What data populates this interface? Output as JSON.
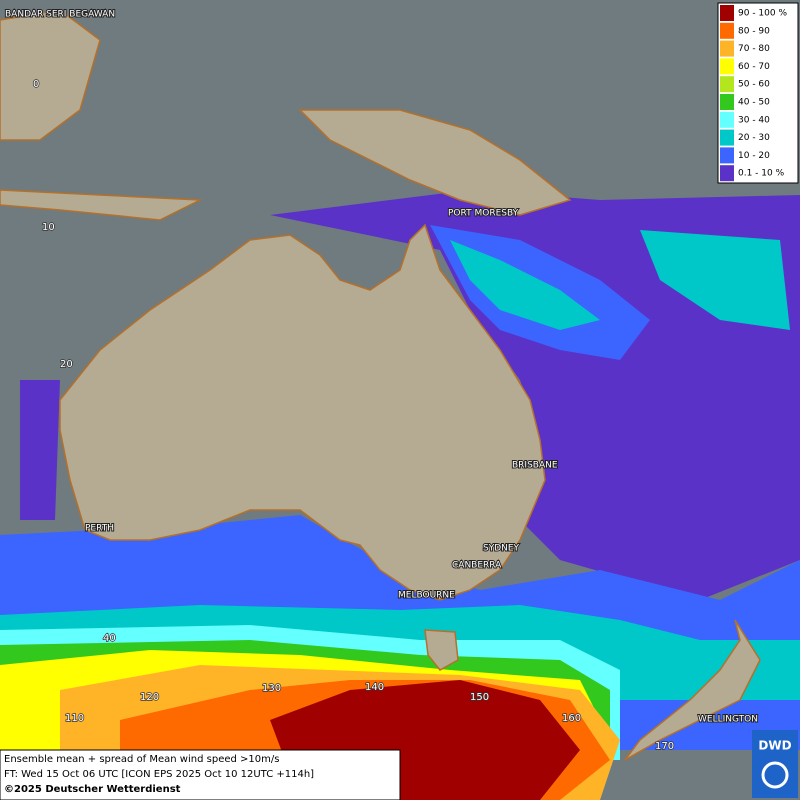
{
  "legend": [
    {
      "label": "90 - 100 %",
      "color": "#a00000"
    },
    {
      "label": "80 - 90",
      "color": "#ff6a00"
    },
    {
      "label": "70 - 80",
      "color": "#ffb428"
    },
    {
      "label": "60 - 70",
      "color": "#ffff00"
    },
    {
      "label": "50 - 60",
      "color": "#b4e61e"
    },
    {
      "label": "40 - 50",
      "color": "#32c81e"
    },
    {
      "label": "30 - 40",
      "color": "#64ffff"
    },
    {
      "label": "20 - 30",
      "color": "#00c8c8"
    },
    {
      "label": "10 - 20",
      "color": "#3c64ff"
    },
    {
      "label": "0.1 - 10 %",
      "color": "#5a32c8"
    }
  ],
  "places": [
    "BANDAR SERI BEGAWAN",
    "PORT MORESBY",
    "BRISBANE",
    "SYDNEY",
    "CANBERRA",
    "MELBOURNE",
    "PERTH",
    "WELLINGTON"
  ],
  "grid_labels": [
    "0",
    "10",
    "20",
    "40",
    "110",
    "120",
    "130",
    "140",
    "150",
    "160",
    "170"
  ],
  "footer": {
    "line1": "Ensemble mean + spread of Mean wind speed >10m/s",
    "line2": "FT: Wed 15 Oct 06 UTC [ICON EPS 2025 Oct 10 12UTC +114h]",
    "line3": "©2025 Deutscher Wetterdienst"
  },
  "logo": "DWD"
}
